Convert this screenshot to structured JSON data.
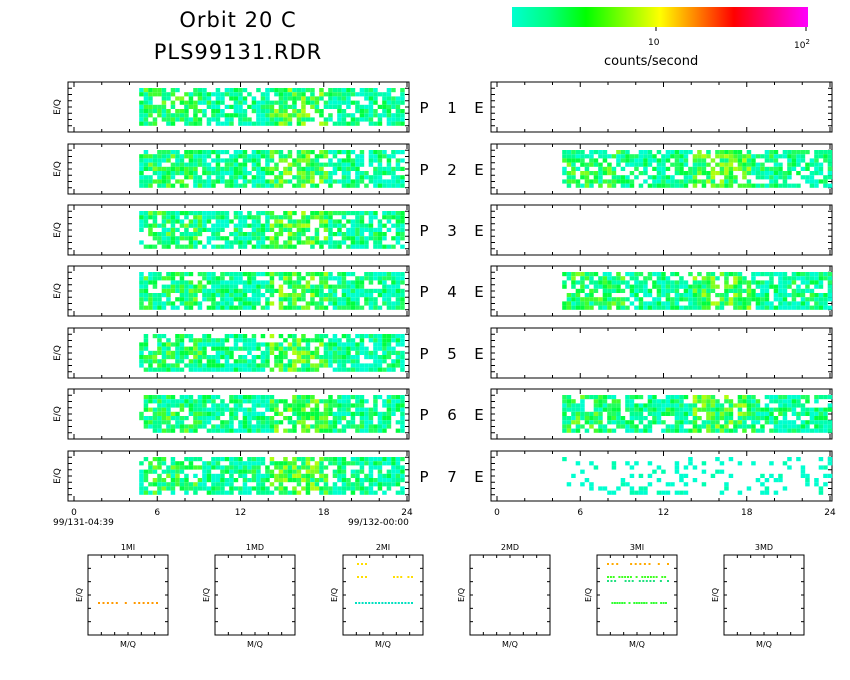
{
  "header": {
    "title_line1": "Orbit 20 C",
    "title_line2": "PLS99131.RDR"
  },
  "colorbar": {
    "label": "counts/second",
    "tick_10": "10",
    "tick_100_base": "10",
    "tick_100_exp": "2",
    "colors": [
      "#00ffd0",
      "#00ff80",
      "#00ff00",
      "#80ff00",
      "#ffff00",
      "#ff8000",
      "#ff0000",
      "#ff0080",
      "#ff00ff"
    ]
  },
  "panel_labels": {
    "y_label": "E/Q",
    "rows": [
      {
        "p": "P",
        "n": "1",
        "e": "E"
      },
      {
        "p": "P",
        "n": "2",
        "e": "E"
      },
      {
        "p": "P",
        "n": "3",
        "e": "E"
      },
      {
        "p": "P",
        "n": "4",
        "e": "E"
      },
      {
        "p": "P",
        "n": "5",
        "e": "E"
      },
      {
        "p": "P",
        "n": "6",
        "e": "E"
      },
      {
        "p": "P",
        "n": "7",
        "e": "E"
      }
    ]
  },
  "time_axis": {
    "ticks": [
      "0",
      "6",
      "12",
      "18",
      "24"
    ],
    "start": "99/131-04:39",
    "end": "99/132-00:00"
  },
  "chart_data": {
    "type": "heatmap",
    "x_range": [
      0,
      24
    ],
    "x_unit": "hours",
    "left_column": [
      {
        "row": 1,
        "x_start": 4.7,
        "x_end": 23.8,
        "present": true
      },
      {
        "row": 2,
        "x_start": 4.7,
        "x_end": 23.8,
        "present": true
      },
      {
        "row": 3,
        "x_start": 4.7,
        "x_end": 23.8,
        "present": true
      },
      {
        "row": 4,
        "x_start": 4.7,
        "x_end": 23.8,
        "present": true
      },
      {
        "row": 5,
        "x_start": 4.7,
        "x_end": 23.8,
        "present": true
      },
      {
        "row": 6,
        "x_start": 4.7,
        "x_end": 23.8,
        "present": true
      },
      {
        "row": 7,
        "x_start": 4.7,
        "x_end": 23.8,
        "present": true
      }
    ],
    "right_column": [
      {
        "row": 1,
        "present": false
      },
      {
        "row": 2,
        "x_start": 4.7,
        "x_end": 23.9,
        "present": true
      },
      {
        "row": 3,
        "present": false
      },
      {
        "row": 4,
        "x_start": 4.7,
        "x_end": 23.9,
        "present": true
      },
      {
        "row": 5,
        "present": false
      },
      {
        "row": 6,
        "x_start": 4.7,
        "x_end": 23.9,
        "present": true
      },
      {
        "row": 7,
        "x_start": 4.7,
        "x_end": 23.9,
        "present": true,
        "sparse": true
      }
    ],
    "color_scale": "log counts/second, 1 to 100"
  },
  "mini_panels": [
    {
      "title": "1MI",
      "xlabel": "M/Q",
      "ylabel": "E/Q"
    },
    {
      "title": "1MD",
      "xlabel": "M/Q",
      "ylabel": "E/Q"
    },
    {
      "title": "2MI",
      "xlabel": "M/Q",
      "ylabel": "E/Q"
    },
    {
      "title": "2MD",
      "xlabel": "M/Q",
      "ylabel": "E/Q"
    },
    {
      "title": "3MI",
      "xlabel": "M/Q",
      "ylabel": "E/Q"
    },
    {
      "title": "3MD",
      "xlabel": "M/Q",
      "ylabel": "E/Q"
    }
  ]
}
